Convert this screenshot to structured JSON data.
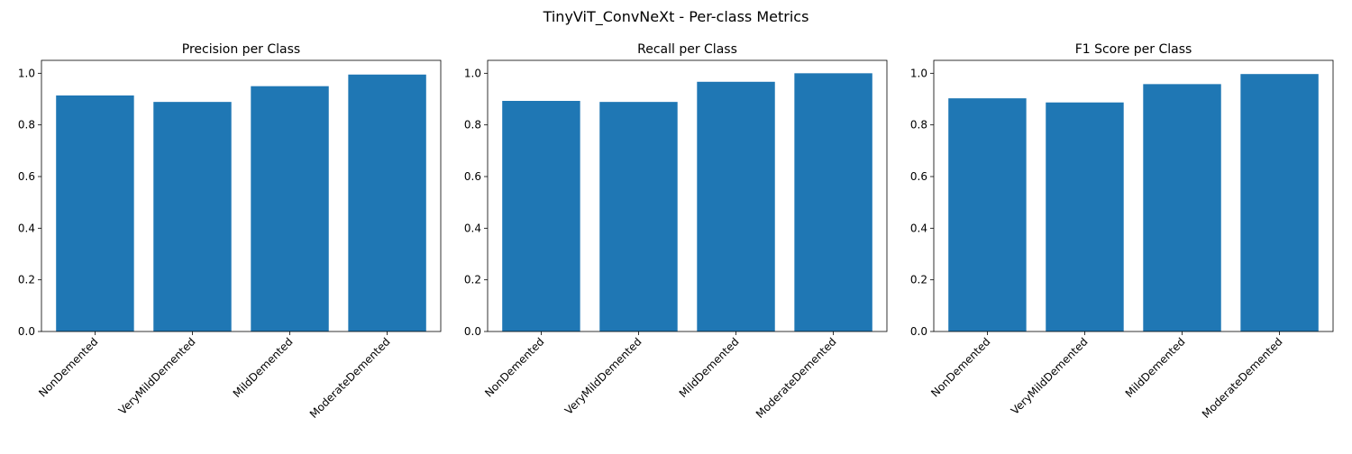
{
  "figure": {
    "suptitle": "TinyViT_ConvNeXt - Per-class Metrics"
  },
  "colors": {
    "bar": "#1f77b4",
    "axis": "#000000",
    "background": "#ffffff"
  },
  "chart_data": [
    {
      "type": "bar",
      "title": "Precision per Class",
      "xlabel": "",
      "ylabel": "",
      "categories": [
        "NonDemented",
        "VeryMildDemented",
        "MildDemented",
        "ModerateDemented"
      ],
      "values": [
        0.914,
        0.889,
        0.95,
        0.995
      ],
      "ylim": [
        0,
        1.05
      ],
      "yticks": [
        "0.0",
        "0.2",
        "0.4",
        "0.6",
        "0.8",
        "1.0"
      ],
      "grid": false
    },
    {
      "type": "bar",
      "title": "Recall per Class",
      "xlabel": "",
      "ylabel": "",
      "categories": [
        "NonDemented",
        "VeryMildDemented",
        "MildDemented",
        "ModerateDemented"
      ],
      "values": [
        0.893,
        0.889,
        0.967,
        1.0
      ],
      "ylim": [
        0,
        1.05
      ],
      "yticks": [
        "0.0",
        "0.2",
        "0.4",
        "0.6",
        "0.8",
        "1.0"
      ],
      "grid": false
    },
    {
      "type": "bar",
      "title": "F1 Score per Class",
      "xlabel": "",
      "ylabel": "",
      "categories": [
        "NonDemented",
        "VeryMildDemented",
        "MildDemented",
        "ModerateDemented"
      ],
      "values": [
        0.903,
        0.887,
        0.958,
        0.997
      ],
      "ylim": [
        0,
        1.05
      ],
      "yticks": [
        "0.0",
        "0.2",
        "0.4",
        "0.6",
        "0.8",
        "1.0"
      ],
      "grid": false
    }
  ]
}
